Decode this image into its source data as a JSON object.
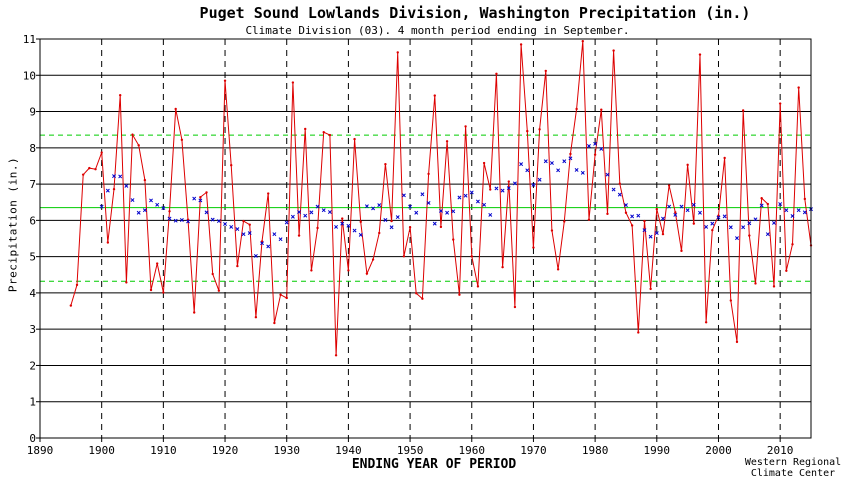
{
  "chart_data": {
    "type": "line",
    "title": "Puget Sound Lowlands Division, Washington  Precipitation (in.)",
    "subtitle": "Climate Division (03). 4 month period ending in September.",
    "xlabel": "ENDING YEAR OF PERIOD",
    "ylabel": "Precipitation (in.)",
    "xlim": [
      1890,
      2015
    ],
    "ylim": [
      0,
      11
    ],
    "x_ticks": [
      1890,
      1900,
      1910,
      1920,
      1930,
      1940,
      1950,
      1960,
      1970,
      1980,
      1990,
      2000,
      2010
    ],
    "y_ticks": [
      0,
      1,
      2,
      3,
      4,
      5,
      6,
      7,
      8,
      9,
      10,
      11
    ],
    "vertical_gridlines": "dashed black",
    "horizontal_gridlines": "solid black",
    "reference_lines": [
      {
        "value": 6.35,
        "style": "solid",
        "color": "#00cc00"
      },
      {
        "value": 8.35,
        "style": "dashed",
        "color": "#00cc00"
      },
      {
        "value": 4.32,
        "style": "dashed",
        "color": "#00cc00"
      }
    ],
    "series": [
      {
        "line_color": "#dd0000",
        "marker": "dot",
        "x": [
          1895,
          1896,
          1897,
          1898,
          1899,
          1900,
          1901,
          1902,
          1903,
          1904,
          1905,
          1906,
          1907,
          1908,
          1909,
          1910,
          1911,
          1912,
          1913,
          1914,
          1915,
          1916,
          1917,
          1918,
          1919,
          1920,
          1921,
          1922,
          1923,
          1924,
          1925,
          1926,
          1927,
          1928,
          1929,
          1930,
          1931,
          1932,
          1933,
          1934,
          1935,
          1936,
          1937,
          1938,
          1939,
          1940,
          1941,
          1942,
          1943,
          1944,
          1945,
          1946,
          1947,
          1948,
          1949,
          1950,
          1951,
          1952,
          1953,
          1954,
          1955,
          1956,
          1957,
          1958,
          1959,
          1960,
          1961,
          1962,
          1963,
          1964,
          1965,
          1966,
          1967,
          1968,
          1969,
          1970,
          1971,
          1972,
          1973,
          1974,
          1975,
          1976,
          1977,
          1978,
          1979,
          1980,
          1981,
          1982,
          1983,
          1984,
          1985,
          1986,
          1987,
          1988,
          1989,
          1990,
          1991,
          1992,
          1993,
          1994,
          1995,
          1996,
          1997,
          1998,
          1999,
          2000,
          2001,
          2002,
          2003,
          2004,
          2005,
          2006,
          2007,
          2008,
          2009,
          2010,
          2011,
          2012,
          2013,
          2014,
          2015
        ],
        "y": [
          3.65,
          4.22,
          7.26,
          7.44,
          7.41,
          7.87,
          5.39,
          6.86,
          9.45,
          4.29,
          8.36,
          8.07,
          7.11,
          4.08,
          4.81,
          4.01,
          6.25,
          9.07,
          8.22,
          6.02,
          3.46,
          6.64,
          6.77,
          4.52,
          4.06,
          9.85,
          7.52,
          4.74,
          5.98,
          5.88,
          3.33,
          5.42,
          6.74,
          3.17,
          3.95,
          3.86,
          9.8,
          5.58,
          8.52,
          4.62,
          5.79,
          8.43,
          8.35,
          2.28,
          6.05,
          4.62,
          8.24,
          5.96,
          4.53,
          4.92,
          5.65,
          7.55,
          5.98,
          10.63,
          5.01,
          5.81,
          3.99,
          3.84,
          7.28,
          9.44,
          5.82,
          8.18,
          5.47,
          3.95,
          8.59,
          5.01,
          4.18,
          7.58,
          6.85,
          10.04,
          4.71,
          7.07,
          3.61,
          10.85,
          8.46,
          5.25,
          8.51,
          10.12,
          5.72,
          4.65,
          5.97,
          7.83,
          9.07,
          10.94,
          6.02,
          7.81,
          9.05,
          6.18,
          10.68,
          7.01,
          6.21,
          5.86,
          2.91,
          5.98,
          4.11,
          6.31,
          5.62,
          6.96,
          6.22,
          5.16,
          7.53,
          5.91,
          10.57,
          3.19,
          5.73,
          6.13,
          7.72,
          3.79,
          2.65,
          9.03,
          5.58,
          4.26,
          6.61,
          6.45,
          4.18,
          9.22,
          4.61,
          5.34,
          9.66,
          6.59,
          5.31
        ]
      },
      {
        "line_color": "#0000cc",
        "marker": "x",
        "x": [
          1900,
          1901,
          1902,
          1903,
          1904,
          1905,
          1906,
          1907,
          1908,
          1909,
          1910,
          1911,
          1912,
          1913,
          1914,
          1915,
          1916,
          1917,
          1918,
          1919,
          1920,
          1921,
          1922,
          1923,
          1924,
          1925,
          1926,
          1927,
          1928,
          1929,
          1930,
          1931,
          1932,
          1933,
          1934,
          1935,
          1936,
          1937,
          1938,
          1939,
          1940,
          1941,
          1942,
          1943,
          1944,
          1945,
          1946,
          1947,
          1948,
          1949,
          1950,
          1951,
          1952,
          1953,
          1954,
          1955,
          1956,
          1957,
          1958,
          1959,
          1960,
          1961,
          1962,
          1963,
          1964,
          1965,
          1966,
          1967,
          1968,
          1969,
          1970,
          1971,
          1972,
          1973,
          1974,
          1975,
          1976,
          1977,
          1978,
          1979,
          1980,
          1981,
          1982,
          1983,
          1984,
          1985,
          1986,
          1987,
          1988,
          1989,
          1990,
          1991,
          1992,
          1993,
          1994,
          1995,
          1996,
          1997,
          1998,
          1999,
          2000,
          2001,
          2002,
          2003,
          2004,
          2005,
          2006,
          2007,
          2008,
          2009,
          2010,
          2011,
          2012,
          2013,
          2014,
          2015
        ],
        "y": [
          6.38,
          6.82,
          7.22,
          7.21,
          6.95,
          6.56,
          6.21,
          6.28,
          6.55,
          6.43,
          6.34,
          6.05,
          5.99,
          6.01,
          5.97,
          6.6,
          6.55,
          6.22,
          6.02,
          5.98,
          5.9,
          5.82,
          5.76,
          5.62,
          5.65,
          5.02,
          5.37,
          5.28,
          5.62,
          5.48,
          5.94,
          6.1,
          6.23,
          6.13,
          6.22,
          6.38,
          6.28,
          6.23,
          5.82,
          5.91,
          5.85,
          5.72,
          5.6,
          6.39,
          6.33,
          6.42,
          6.01,
          5.81,
          6.09,
          6.69,
          6.38,
          6.21,
          6.72,
          6.48,
          5.91,
          6.26,
          6.21,
          6.25,
          6.63,
          6.68,
          6.77,
          6.52,
          6.43,
          6.15,
          6.88,
          6.82,
          6.89,
          7.02,
          7.55,
          7.38,
          6.98,
          7.12,
          7.63,
          7.58,
          7.38,
          7.63,
          7.71,
          7.39,
          7.31,
          8.05,
          8.11,
          7.97,
          7.26,
          6.85,
          6.71,
          6.42,
          6.11,
          6.13,
          5.73,
          5.55,
          5.65,
          6.05,
          6.38,
          6.15,
          6.38,
          6.28,
          6.43,
          6.21,
          5.82,
          5.91,
          6.08,
          6.11,
          5.81,
          5.51,
          5.81,
          5.92,
          6.03,
          6.41,
          5.62,
          5.93,
          6.45,
          6.28,
          6.12,
          6.28,
          6.22,
          6.31
        ]
      }
    ],
    "credit": [
      "Western Regional",
      "Climate Center"
    ]
  }
}
